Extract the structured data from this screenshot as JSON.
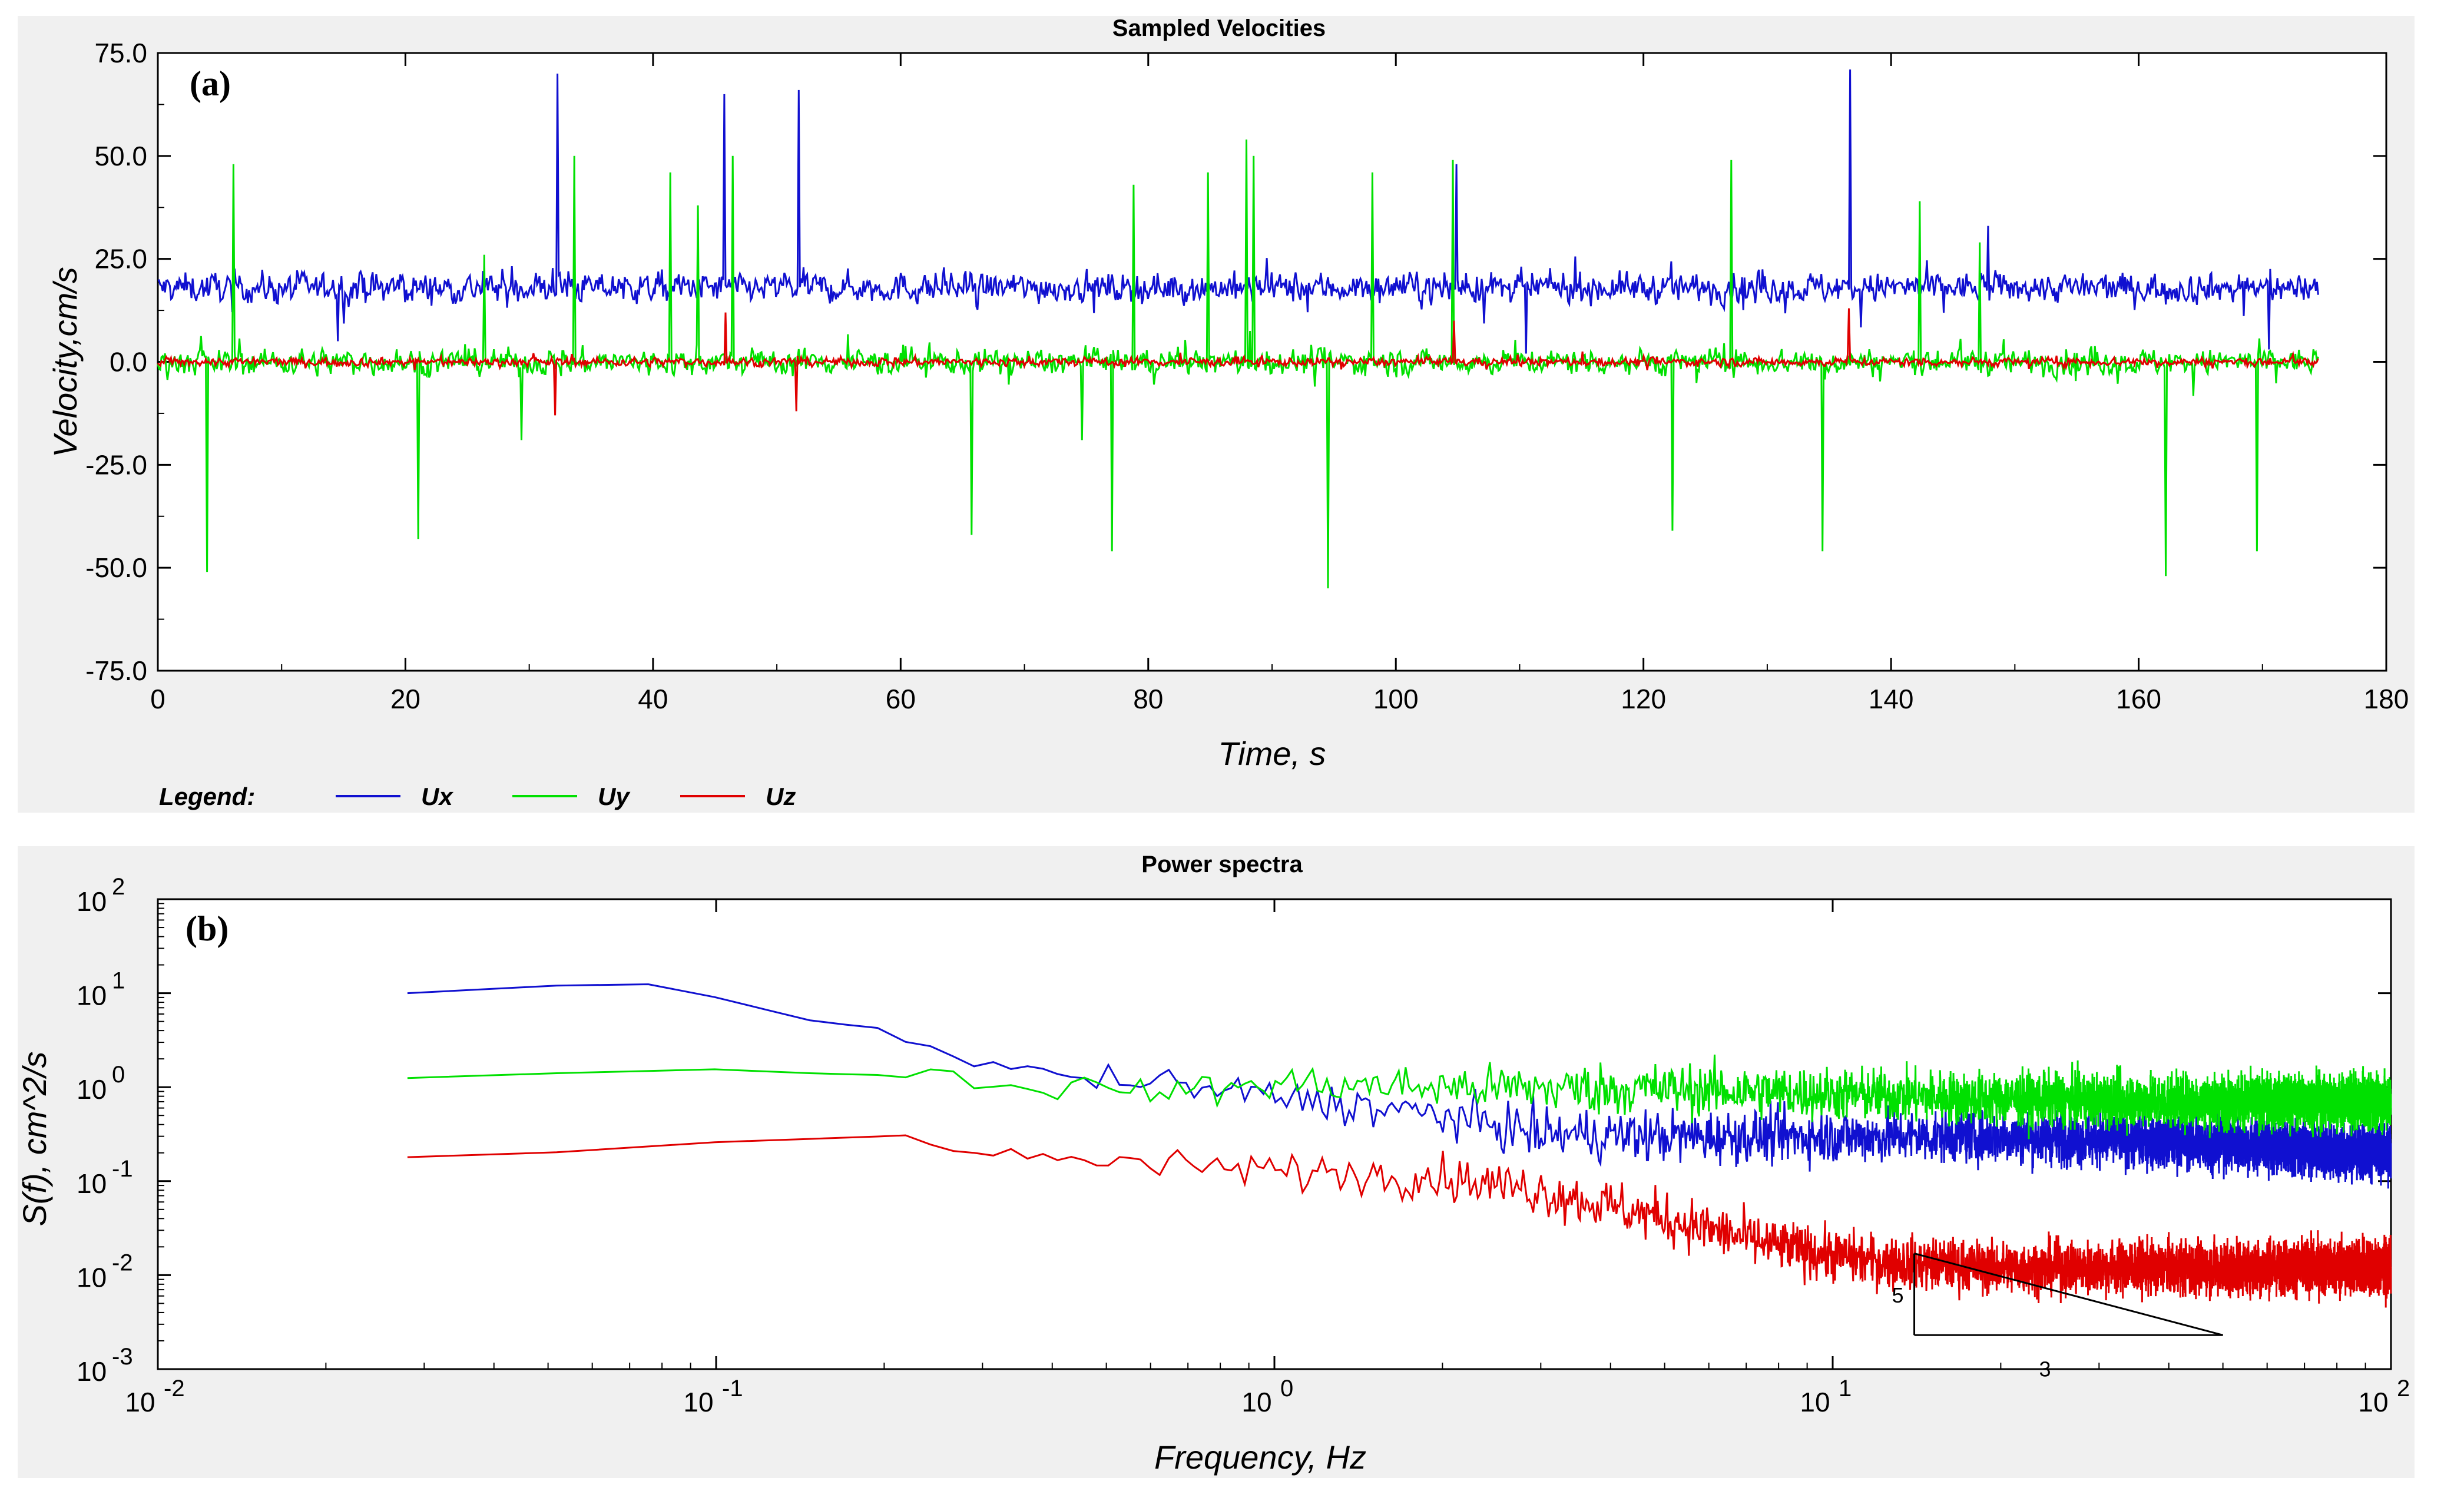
{
  "chart_data": [
    {
      "type": "line",
      "panel_label": "(a)",
      "title": "Sampled Velocities",
      "xlabel": "Time, s",
      "ylabel": "Velocity,cm/s",
      "xlim": [
        0,
        180
      ],
      "ylim": [
        -75,
        75
      ],
      "xticks": [
        "0",
        "20",
        "40",
        "60",
        "80",
        "100",
        "120",
        "140",
        "160",
        "180"
      ],
      "xtick_values": [
        0,
        20,
        40,
        60,
        80,
        100,
        120,
        140,
        160,
        180
      ],
      "yticks": [
        "75.0",
        "50.0",
        "25.0",
        "0.0",
        "-25.0",
        "-50.0",
        "-75.0"
      ],
      "ytick_values": [
        75,
        50,
        25,
        0,
        -25,
        -50,
        -75
      ],
      "legend_title": "Legend:",
      "series": [
        {
          "name": "Ux",
          "color": "#1010d0",
          "mean": 18,
          "noise": 3.5,
          "t_end": 174.5,
          "spikes": [
            [
              32.3,
              70
            ],
            [
              45.8,
              65
            ],
            [
              51.8,
              66
            ],
            [
              104.9,
              48
            ],
            [
              136.7,
              71
            ],
            [
              110.5,
              2
            ],
            [
              147.8,
              33
            ],
            [
              14.5,
              5
            ],
            [
              170.5,
              3
            ]
          ]
        },
        {
          "name": "Uy",
          "color": "#00e000",
          "mean": 0,
          "noise": 3.0,
          "t_end": 174.5,
          "spikes": [
            [
              6.1,
              48
            ],
            [
              4.0,
              -51
            ],
            [
              21.0,
              -43
            ],
            [
              26.4,
              26
            ],
            [
              29.4,
              -19
            ],
            [
              33.6,
              50
            ],
            [
              41.4,
              46
            ],
            [
              43.6,
              38
            ],
            [
              46.4,
              50
            ],
            [
              65.7,
              -42
            ],
            [
              74.6,
              -19
            ],
            [
              77.1,
              -46
            ],
            [
              78.8,
              43
            ],
            [
              84.8,
              46
            ],
            [
              87.9,
              54
            ],
            [
              88.5,
              50
            ],
            [
              94.5,
              -55
            ],
            [
              98.1,
              46
            ],
            [
              104.6,
              49
            ],
            [
              122.3,
              -41
            ],
            [
              127.1,
              49
            ],
            [
              134.5,
              -46
            ],
            [
              142.3,
              39
            ],
            [
              162.2,
              -52
            ],
            [
              169.6,
              -46
            ],
            [
              147.2,
              29
            ]
          ]
        },
        {
          "name": "Uz",
          "color": "#e00000",
          "mean": 0,
          "noise": 1.0,
          "t_end": 174.5,
          "spikes": [
            [
              32.1,
              -13
            ],
            [
              45.9,
              12
            ],
            [
              51.6,
              -12
            ],
            [
              136.6,
              13
            ],
            [
              104.7,
              10
            ]
          ]
        }
      ]
    },
    {
      "type": "line",
      "scale": "log-log",
      "panel_label": "(b)",
      "title": "Power spectra",
      "xlabel": "Frequency, Hz",
      "ylabel": "S(f), cm^2/s",
      "xlim": [
        0.01,
        100
      ],
      "ylim": [
        0.001,
        100
      ],
      "xticks": [
        {
          "base": "10",
          "exp": "-2"
        },
        {
          "base": "10",
          "exp": "-1"
        },
        {
          "base": "10",
          "exp": "0"
        },
        {
          "base": "10",
          "exp": "1"
        },
        {
          "base": "10",
          "exp": "2"
        }
      ],
      "yticks": [
        {
          "base": "10",
          "exp": "2"
        },
        {
          "base": "10",
          "exp": "1"
        },
        {
          "base": "10",
          "exp": "0"
        },
        {
          "base": "10",
          "exp": "-1"
        },
        {
          "base": "10",
          "exp": "-2"
        },
        {
          "base": "10",
          "exp": "-3"
        }
      ],
      "series": [
        {
          "name": "Ux",
          "color": "#1010d0",
          "x": [
            0.028,
            0.05,
            0.08,
            0.1,
            0.15,
            0.2,
            0.3,
            0.4,
            0.6,
            1.0,
            2.0,
            3.0,
            5.0,
            10.0,
            20.0,
            50.0,
            100.0
          ],
          "y": [
            10.0,
            12.0,
            12.5,
            9.0,
            5.0,
            4.2,
            1.6,
            1.4,
            1.1,
            0.8,
            0.5,
            0.32,
            0.3,
            0.3,
            0.3,
            0.25,
            0.2
          ]
        },
        {
          "name": "Uy",
          "color": "#00e000",
          "x": [
            0.028,
            0.05,
            0.1,
            0.15,
            0.25,
            0.4,
            0.7,
            1.0,
            2.0,
            5.0,
            10.0,
            20.0,
            50.0,
            100.0
          ],
          "y": [
            1.25,
            1.4,
            1.55,
            1.4,
            1.3,
            1.0,
            0.9,
            1.1,
            1.0,
            0.95,
            0.85,
            0.75,
            0.7,
            0.7
          ]
        },
        {
          "name": "Uz",
          "color": "#e00000",
          "x": [
            0.028,
            0.05,
            0.1,
            0.2,
            0.3,
            0.5,
            1.0,
            2.0,
            3.0,
            5.0,
            8.0,
            12.0,
            20.0,
            40.0,
            100.0
          ],
          "y": [
            0.18,
            0.2,
            0.26,
            0.3,
            0.19,
            0.16,
            0.13,
            0.11,
            0.08,
            0.04,
            0.02,
            0.014,
            0.012,
            0.012,
            0.012
          ]
        }
      ],
      "annotation": {
        "type": "slope-triangle",
        "vertical_label": "5",
        "horizontal_label": "3",
        "corner": [
          14,
          0.0023
        ],
        "top": [
          14,
          0.017
        ],
        "right_end": [
          50,
          0.0023
        ]
      }
    }
  ]
}
